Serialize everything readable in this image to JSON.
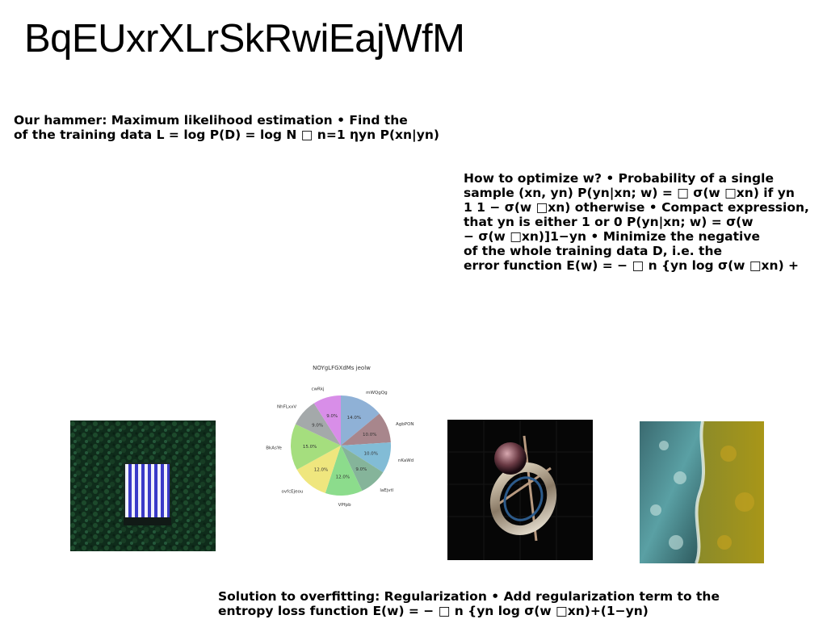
{
  "title": "BqEUxrXLrSkRwiEajWfM",
  "text_blocks": {
    "block1": [
      "Our hammer: Maximum likelihood estimation • Find the",
      "of the training data L = log P(D) = log N □ n=1 ηyn P(xn|yn)"
    ],
    "block2": [
      "How to optimize w? • Probability of a single",
      "sample (xn, yn) P(yn|xn; w) = □ σ(w □xn) if yn",
      "1 1 − σ(w □xn) otherwise • Compact expression,",
      "that yn is either 1 or 0 P(yn|xn; w) = σ(w",
      "− σ(w □xn)]1−yn • Minimize the negative",
      "of the whole training data D, i.e. the",
      "error function E(w) = − □ n {yn log σ(w □xn) +"
    ],
    "block3": [
      "Solution to overfitting: Regularization • Add regularization term to the",
      "entropy loss function E(w) = − □ n {yn log σ(w □xn)+(1−yn)"
    ]
  },
  "chart_data": {
    "type": "pie",
    "title": "NOYgLFGXdMs jeolw",
    "labels": [
      "mWQgQg",
      "AgbPON",
      "nKaWd",
      "laEjvtl",
      "VPfpb",
      "ovfcEjeou",
      "BkAsYe",
      "NhFLxxV",
      "cwRkj"
    ],
    "values": [
      14.0,
      10.0,
      10.0,
      9.0,
      12.0,
      12.0,
      15.0,
      9.0,
      9.0
    ],
    "value_labels": [
      "14.0%",
      "10.0%",
      "10.0%",
      "9.0%",
      "12.0%",
      "12.0%",
      "15.0%",
      "9.0%",
      "9.0%"
    ],
    "colors": [
      "#8fb1d6",
      "#a8868c",
      "#82bcd6",
      "#85b49a",
      "#8cdc8c",
      "#efe67e",
      "#a5de7e",
      "#a4a9aa",
      "#d88ee8"
    ],
    "start_angle_deg": 90,
    "direction": "clockwise"
  }
}
